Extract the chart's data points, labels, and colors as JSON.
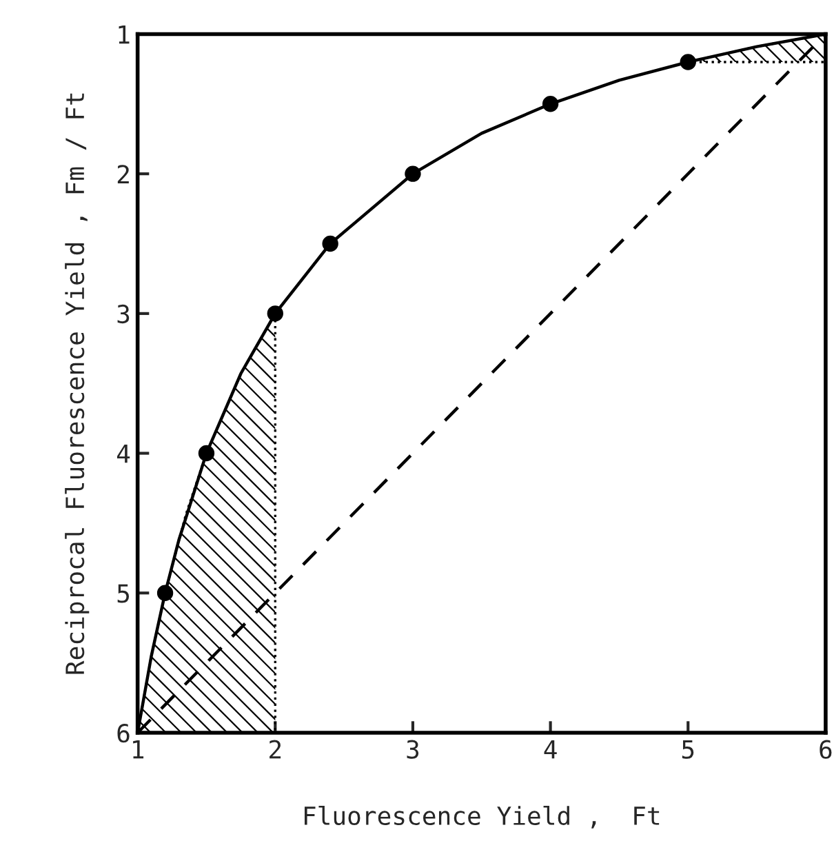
{
  "chart_data": {
    "type": "line",
    "xlabel": "Fluorescence Yield ,  Ft",
    "ylabel": "Reciprocal Fluorescence Yield , Fm / Ft",
    "xlim": [
      1,
      6
    ],
    "ylim": [
      6,
      1
    ],
    "xticks": [
      1,
      2,
      3,
      4,
      5,
      6
    ],
    "yticks": [
      1,
      2,
      3,
      4,
      5,
      6
    ],
    "grid": false,
    "legend": false,
    "series": [
      {
        "type": "area",
        "color": "#000000",
        "line_style": "dotted",
        "x": [
          1,
          1.1,
          1.2,
          1.35,
          1.5,
          1.75,
          2,
          2
        ],
        "values": [
          6,
          5.45,
          5,
          4.44,
          4,
          3.43,
          3,
          6
        ]
      },
      {
        "type": "area",
        "color": "#000000",
        "line_style": "dotted",
        "x": [
          5,
          5.5,
          6,
          6
        ],
        "values": [
          1.2,
          1.09,
          1,
          1.2
        ]
      },
      {
        "type": "line",
        "color": "#000000",
        "line_style": "dashed",
        "marker": "none",
        "x": [
          1,
          6
        ],
        "values": [
          6,
          1
        ]
      },
      {
        "color": "#000000",
        "line_style": "solid",
        "marker": "none",
        "x": [
          1,
          1.1,
          1.2,
          1.3,
          1.5,
          1.75,
          2,
          2.4,
          3,
          3.5,
          4,
          4.5,
          5,
          5.5,
          6
        ],
        "values": [
          6,
          5.45,
          5,
          4.62,
          4,
          3.43,
          3,
          2.5,
          2,
          1.71,
          1.5,
          1.33,
          1.2,
          1.09,
          1
        ]
      },
      {
        "type": "scatter",
        "color": "#000000",
        "marker": "circle",
        "x": [
          1.2,
          1.5,
          2,
          2.4,
          3,
          4,
          5
        ],
        "values": [
          5,
          4,
          3,
          2.5,
          2,
          1.5,
          1.2
        ]
      }
    ]
  }
}
